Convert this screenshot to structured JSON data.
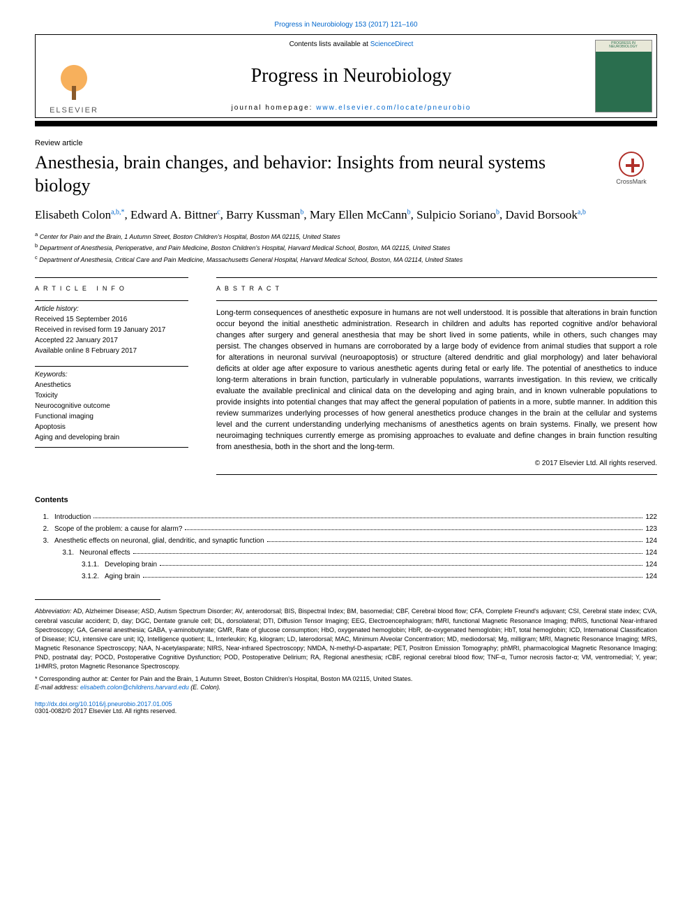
{
  "header": {
    "top_link_pre": "Progress in Neurobiology 153 (2017) 121–160",
    "contents_available": "Contents lists available at ",
    "sciencedirect": "ScienceDirect",
    "journal_name": "Progress in Neurobiology",
    "homepage_label": "journal homepage: ",
    "homepage_url": "www.elsevier.com/locate/pneurobio",
    "elsevier": "ELSEVIER",
    "cover_caption": "PROGRESS IN NEUROBIOLOGY"
  },
  "article": {
    "type": "Review article",
    "title": "Anesthesia, brain changes, and behavior: Insights from neural systems biology",
    "crossmark": "CrossMark",
    "authors_html_parts": {
      "a1": "Elisabeth Colon",
      "a1_sup": "a,b,*",
      "sep1": ", ",
      "a2": "Edward A. Bittner",
      "a2_sup": "c",
      "sep2": ", ",
      "a3": "Barry Kussman",
      "a3_sup": "b",
      "sep3": ", ",
      "a4": "Mary Ellen McCann",
      "a4_sup": "b",
      "sep4": ", ",
      "a5": "Sulpicio Soriano",
      "a5_sup": "b",
      "sep5": ", ",
      "a6": "David Borsook",
      "a6_sup": "a,b"
    },
    "affiliations": {
      "a": "Center for Pain and the Brain, 1 Autumn Street, Boston Children's Hospital, Boston MA 02115, United States",
      "b": "Department of Anesthesia, Perioperative, and Pain Medicine, Boston Children's Hospital, Harvard Medical School, Boston, MA 02115, United States",
      "c": "Department of Anesthesia, Critical Care and Pain Medicine, Massachusetts General Hospital, Harvard Medical School, Boston, MA 02114, United States"
    }
  },
  "info": {
    "heading": "ARTICLE INFO",
    "history_label": "Article history:",
    "history": [
      "Received 15 September 2016",
      "Received in revised form 19 January 2017",
      "Accepted 22 January 2017",
      "Available online 8 February 2017"
    ],
    "keywords_label": "Keywords:",
    "keywords": [
      "Anesthetics",
      "Toxicity",
      "Neurocognitive outcome",
      "Functional imaging",
      "Apoptosis",
      "Aging and developing brain"
    ]
  },
  "abstract": {
    "heading": "ABSTRACT",
    "text": "Long-term consequences of anesthetic exposure in humans are not well understood. It is possible that alterations in brain function occur beyond the initial anesthetic administration. Research in children and adults has reported cognitive and/or behavioral changes after surgery and general anesthesia that may be short lived in some patients, while in others, such changes may persist. The changes observed in humans are corroborated by a large body of evidence from animal studies that support a role for alterations in neuronal survival (neuroapoptosis) or structure (altered dendritic and glial morphology) and later behavioral deficits at older age after exposure to various anesthetic agents during fetal or early life. The potential of anesthetics to induce long-term alterations in brain function, particularly in vulnerable populations, warrants investigation. In this review, we critically evaluate the available preclinical and clinical data on the developing and aging brain, and in known vulnerable populations to provide insights into potential changes that may affect the general population of patients in a more, subtle manner. In addition this review summarizes underlying processes of how general anesthetics produce changes in the brain at the cellular and systems level and the current understanding underlying mechanisms of anesthetics agents on brain systems. Finally, we present how neuroimaging techniques currently emerge as promising approaches to evaluate and define changes in brain function resulting from anesthesia, both in the short and the long-term.",
    "copyright": "© 2017 Elsevier Ltd. All rights reserved."
  },
  "contents": {
    "heading": "Contents",
    "items": [
      {
        "num": "1.",
        "indent": 0,
        "label": "Introduction",
        "page": "122"
      },
      {
        "num": "2.",
        "indent": 0,
        "label": "Scope of the problem: a cause for alarm?",
        "page": "123"
      },
      {
        "num": "3.",
        "indent": 0,
        "label": "Anesthetic effects on neuronal, glial, dendritic, and synaptic function",
        "page": "124"
      },
      {
        "num": "3.1.",
        "indent": 1,
        "label": "Neuronal effects",
        "page": "124"
      },
      {
        "num": "3.1.1.",
        "indent": 2,
        "label": "Developing brain",
        "page": "124"
      },
      {
        "num": "3.1.2.",
        "indent": 2,
        "label": "Aging brain",
        "page": "124"
      }
    ]
  },
  "footer": {
    "abbrev_lead": "Abbreviation:",
    "abbrev_text": " AD, Alzheimer Disease; ASD, Autism Spectrum Disorder; AV, anterodorsal; BIS, Bispectral Index; BM, basomedial; CBF, Cerebral blood flow; CFA, Complete Freund's adjuvant; CSI, Cerebral state index; CVA, cerebral vascular accident; D, day; DGC, Dentate granule cell; DL, dorsolateral; DTI, Diffusion Tensor Imaging; EEG, Electroencephalogram; fMRI, functional Magnetic Resonance Imaging; fNRIS, functional Near-infrared Spectroscopy; GA, General anesthesia; GABA, γ-aminobutyrate; GMR, Rate of glucose consumption; HbO, oxygenated hemoglobin; HbR, de-oxygenated hemoglobin; HbT, total hemoglobin; ICD, International Classification of Disease; ICU, intensive care unit; IQ, Intelligence quotient; IL, Interleukin; Kg, kilogram; LD, laterodorsal; MAC, Minimum Alveolar Concentration; MD, mediodorsal; Mg, milligram; MRI, Magnetic Resonance Imaging; MRS, Magnetic Resonance Spectroscopy; NAA, N-acetylasparate; NIRS, Near-infrared Spectroscopy; NMDA, N-methyl-D-aspartate; PET, Positron Emission Tomography; phMRI, pharmacological Magnetic Resonance Imaging; PND, postnatal day; POCD, Postoperative Cognitive Dysfunction; POD, Postoperative Delirium; RA, Regional anesthesia; rCBF, regional cerebral blood flow; TNF-α, Tumor necrosis factor-α; VM, ventromedial; Y, year; 1HMRS, proton Magnetic Resonance Spectroscopy.",
    "corr_marker": "*",
    "corr_text": " Corresponding author at: Center for Pain and the Brain, 1 Autumn Street, Boston Children's Hospital, Boston MA 02115, United States.",
    "email_label": "E-mail address: ",
    "email": "elisabeth.colon@childrens.harvard.edu",
    "email_tail": " (E. Colon).",
    "doi": "http://dx.doi.org/10.1016/j.pneurobio.2017.01.005",
    "issn_line": "0301-0082/© 2017 Elsevier Ltd. All rights reserved."
  },
  "colors": {
    "link": "#0066cc",
    "elsevier_orange": "#f7941e",
    "cover_green": "#2a6e4e",
    "crossmark_red": "#b0302a"
  }
}
